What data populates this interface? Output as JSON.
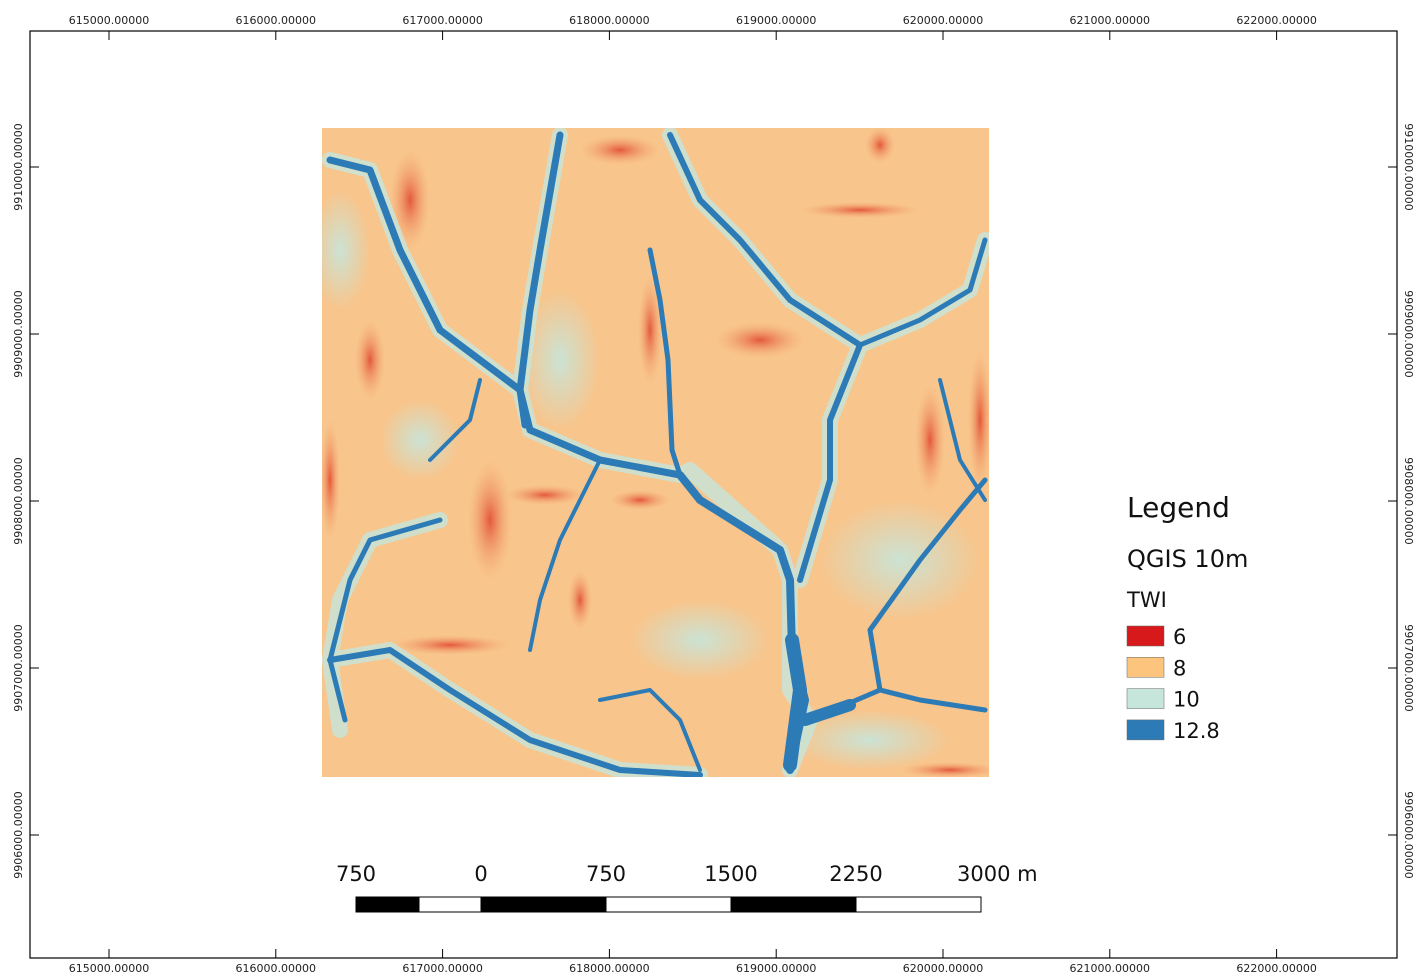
{
  "map": {
    "x_labels": [
      "615000.00000",
      "616000.00000",
      "617000.00000",
      "618000.00000",
      "619000.00000",
      "620000.00000",
      "621000.00000",
      "622000.00000"
    ],
    "y_labels": [
      "9910000.00000",
      "9909000.00000",
      "9908000.00000",
      "9907000.00000",
      "9906000.00000"
    ],
    "legend": {
      "title": "Legend",
      "layer": "QGIS 10m",
      "field": "TWI",
      "items": [
        {
          "label": "6",
          "color": "#d7191c"
        },
        {
          "label": "8",
          "color": "#fdc47d"
        },
        {
          "label": "10",
          "color": "#c6e6dc"
        },
        {
          "label": "12.8",
          "color": "#2c7bb6"
        }
      ]
    },
    "scale_bar": {
      "labels": [
        "750",
        "0",
        "750",
        "1500",
        "2250",
        "3000 m"
      ]
    }
  }
}
